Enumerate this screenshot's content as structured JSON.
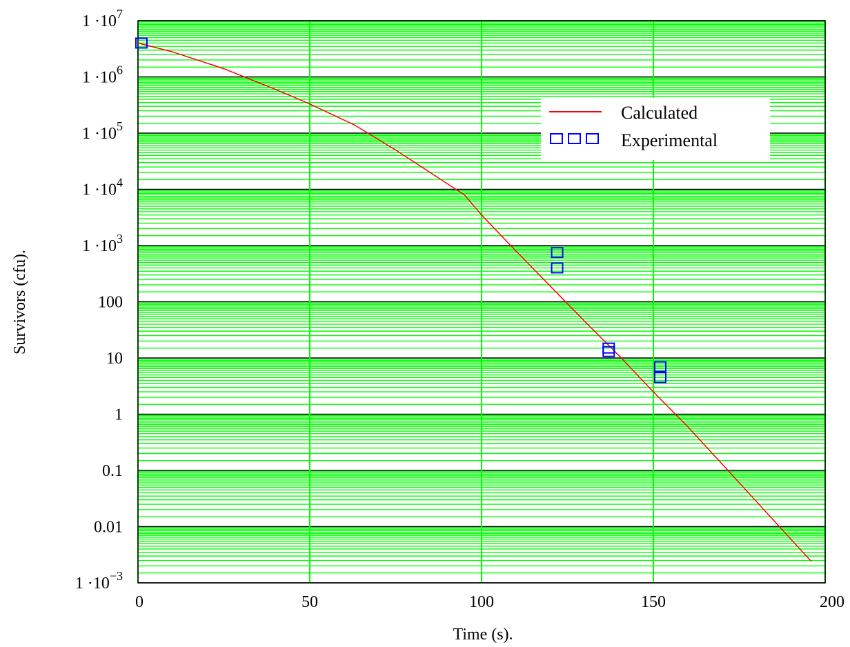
{
  "chart_data": {
    "type": "scatter",
    "title": "",
    "xlabel": "Time (s).",
    "ylabel": "Survivors (cfu).",
    "xlim": [
      0,
      200
    ],
    "ylim": [
      0.001,
      10000000
    ],
    "y_scale": "log",
    "x_ticks": [
      "0",
      "50",
      "100",
      "150",
      "200"
    ],
    "y_ticks": [
      {
        "base": "1 ·10",
        "exp": "7"
      },
      {
        "base": "1 ·10",
        "exp": "6"
      },
      {
        "base": "1 ·10",
        "exp": "5"
      },
      {
        "base": "1 ·10",
        "exp": "4"
      },
      {
        "base": "1 ·10",
        "exp": "3"
      },
      {
        "base": "100",
        "exp": ""
      },
      {
        "base": "10",
        "exp": ""
      },
      {
        "base": "1",
        "exp": ""
      },
      {
        "base": "0.1",
        "exp": ""
      },
      {
        "base": "0.01",
        "exp": ""
      },
      {
        "base": "1 ·10",
        "exp": "−3"
      }
    ],
    "grid": true,
    "grid_color": "#00ff00",
    "major_grid_color": "#000000",
    "background": "#ffffff",
    "legend_position": "top-right",
    "series": [
      {
        "name": "Calculated",
        "kind": "line",
        "color": "#ff0000",
        "x": [
          0,
          10,
          25,
          40,
          50,
          63,
          75,
          85,
          95,
          100,
          110,
          120,
          130,
          140,
          150,
          160,
          170,
          180,
          190,
          196
        ],
        "y": [
          4000000,
          2800000,
          1400000,
          600000,
          330000,
          140000,
          50000,
          20000,
          8000,
          3500,
          800,
          190,
          45,
          11,
          2.5,
          0.6,
          0.13,
          0.028,
          0.006,
          0.0024
        ]
      },
      {
        "name": "Experimental",
        "kind": "scatter",
        "marker": "square",
        "color": "#0000ff",
        "x": [
          1,
          122,
          122,
          137,
          137,
          152,
          152
        ],
        "y": [
          4000000,
          750,
          400,
          15,
          13,
          7,
          4.5
        ]
      }
    ]
  }
}
